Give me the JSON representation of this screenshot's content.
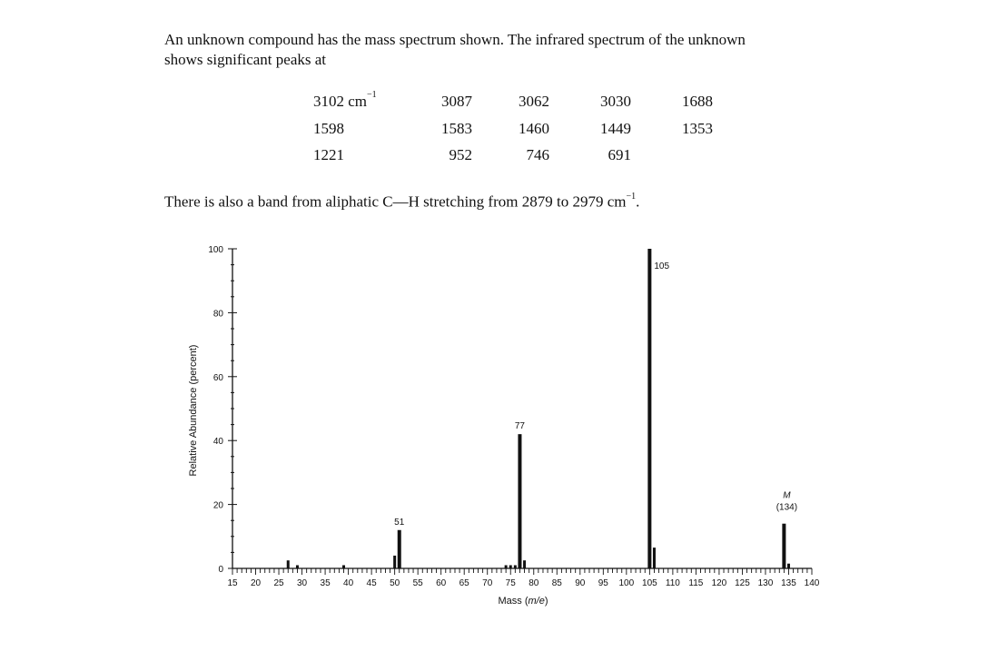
{
  "intro": {
    "line1": "An unknown compound has the mass spectrum shown. The infrared spectrum of the unknown",
    "line2": "shows significant peaks at"
  },
  "ir_peaks": {
    "unit": "cm",
    "unit_exponent": "−1",
    "rows": [
      [
        "3102",
        "3087",
        "3062",
        "3030",
        "1688"
      ],
      [
        "1598",
        "1583",
        "1460",
        "1449",
        "1353"
      ],
      [
        "1221",
        "952",
        "746",
        "691"
      ]
    ]
  },
  "extra": {
    "text": "There is also a band from aliphatic C—H stretching from 2879 to 2979 cm",
    "exponent": "−1",
    "end": "."
  },
  "chart_data": {
    "type": "bar",
    "xlabel": "Mass (m/e)",
    "ylabel": "Relative Abundance (percent)",
    "xlim": [
      15,
      140
    ],
    "ylim": [
      0,
      100
    ],
    "x_ticks": [
      15,
      20,
      25,
      30,
      35,
      40,
      45,
      50,
      55,
      60,
      65,
      70,
      75,
      80,
      85,
      90,
      95,
      100,
      105,
      110,
      115,
      120,
      125,
      130,
      135,
      140
    ],
    "y_ticks": [
      0,
      20,
      40,
      60,
      80,
      100
    ],
    "grid": false,
    "peaks": [
      {
        "x": 27,
        "y": 2.5
      },
      {
        "x": 29,
        "y": 1
      },
      {
        "x": 39,
        "y": 1
      },
      {
        "x": 50,
        "y": 4
      },
      {
        "x": 51,
        "y": 12
      },
      {
        "x": 74,
        "y": 1
      },
      {
        "x": 75,
        "y": 1
      },
      {
        "x": 76,
        "y": 1
      },
      {
        "x": 77,
        "y": 42
      },
      {
        "x": 78,
        "y": 2.5
      },
      {
        "x": 105,
        "y": 100
      },
      {
        "x": 106,
        "y": 6.5
      },
      {
        "x": 134,
        "y": 14
      },
      {
        "x": 135,
        "y": 1.5
      }
    ],
    "annotations": [
      {
        "x": 51,
        "text": "51"
      },
      {
        "x": 77,
        "text": "77"
      },
      {
        "x": 105,
        "text": "105"
      },
      {
        "x": 134,
        "text": "M",
        "subtext": "(134)"
      }
    ]
  }
}
